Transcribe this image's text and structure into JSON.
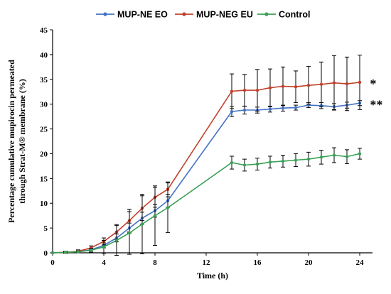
{
  "chart_data": {
    "type": "line",
    "xlabel": "Time (h)",
    "ylabel_lines": [
      "Percentage cumulative mupirocin permeated",
      "through Strat-M® membrane (%)"
    ],
    "xlim": [
      0,
      25
    ],
    "ylim": [
      0,
      45
    ],
    "x_ticks": [
      0,
      4,
      8,
      12,
      16,
      20,
      24
    ],
    "y_ticks": [
      0,
      5,
      10,
      15,
      20,
      25,
      30,
      35,
      40,
      45
    ],
    "grid": false,
    "legend_position": "top",
    "x": [
      0,
      1,
      2,
      3,
      4,
      5,
      6,
      7,
      8,
      9,
      14,
      15,
      16,
      17,
      18,
      19,
      20,
      21,
      22,
      23,
      24
    ],
    "series": [
      {
        "name": "MUP-NE EO",
        "color": "#4472c4",
        "values": [
          0,
          0.1,
          0.2,
          0.6,
          1.5,
          3.0,
          5.0,
          7.0,
          8.5,
          10.5,
          28.5,
          28.8,
          28.8,
          29.0,
          29.2,
          29.3,
          29.8,
          29.7,
          29.5,
          29.8,
          30.2
        ],
        "errors": [
          0,
          0.1,
          0.2,
          0.3,
          0.5,
          0.8,
          1.0,
          1.2,
          1.3,
          1.3,
          1.0,
          0.8,
          0.6,
          0.6,
          0.6,
          0.5,
          0.5,
          0.6,
          0.6,
          0.6,
          0.5
        ]
      },
      {
        "name": "MUP-NEG EU",
        "color": "#c0402a",
        "values": [
          0,
          0.1,
          0.3,
          1.0,
          2.3,
          4.2,
          6.5,
          9.0,
          11.2,
          12.8,
          32.6,
          32.8,
          32.8,
          33.3,
          33.6,
          33.5,
          33.8,
          34.0,
          34.3,
          34.1,
          34.4
        ],
        "errors": [
          0,
          0.2,
          0.3,
          0.4,
          0.7,
          1.5,
          2.3,
          2.5,
          2.0,
          1.5,
          3.5,
          3.2,
          4.2,
          3.8,
          3.9,
          3.2,
          3.8,
          4.5,
          5.5,
          5.4,
          5.5
        ]
      },
      {
        "name": "Control",
        "color": "#3aa056",
        "values": [
          0,
          0.1,
          0.2,
          0.5,
          1.2,
          2.5,
          4.0,
          5.8,
          7.5,
          9.1,
          18.2,
          17.7,
          17.9,
          18.3,
          18.5,
          18.7,
          18.9,
          19.3,
          19.7,
          19.4,
          20.0
        ],
        "errors": [
          0,
          0.1,
          0.2,
          0.4,
          1.3,
          3.0,
          4.3,
          6.0,
          6.0,
          5.0,
          1.3,
          1.2,
          1.2,
          1.2,
          1.2,
          1.3,
          1.4,
          1.4,
          1.5,
          1.4,
          1.1
        ]
      }
    ],
    "annotations": [
      {
        "text": "*",
        "x": 24.8,
        "y": 34.4
      },
      {
        "text": "**",
        "x": 24.8,
        "y": 30.2
      }
    ]
  }
}
